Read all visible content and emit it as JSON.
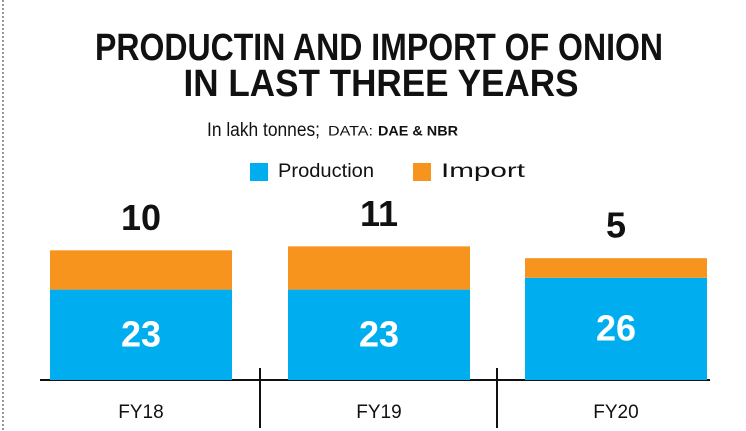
{
  "chart_data": {
    "type": "stacked-bar",
    "title": [
      "PRODUCTIN AND IMPORT OF ONION",
      "IN LAST THREE YEARS"
    ],
    "subtitle": "In lakh tonnes;",
    "source_label": "DATA:",
    "source": "DAE & NBR",
    "categories": [
      "FY18",
      "FY19",
      "FY20"
    ],
    "series": [
      {
        "name": "Production",
        "color": "#00aeef",
        "values": [
          23,
          23,
          26
        ]
      },
      {
        "name": "Import",
        "color": "#f7941d",
        "values": [
          10,
          11,
          5
        ]
      }
    ]
  }
}
